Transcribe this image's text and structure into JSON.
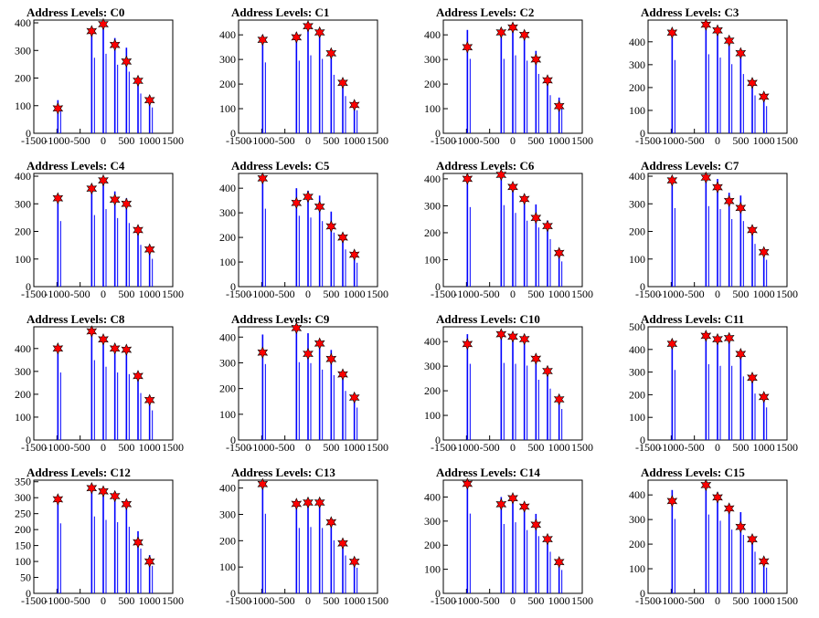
{
  "title_prefix": "Address Levels: ",
  "x_ticks": [
    "-1500",
    "-1000",
    "-500",
    "0",
    "500",
    "1000",
    "1500"
  ],
  "colors": {
    "histogram": "#0000ff",
    "marker_fill": "#ff0000",
    "marker_stroke": "#000000",
    "frame": "#000000",
    "background": "#ffffff"
  },
  "chart_data": [
    {
      "type": "bar",
      "title": "Address Levels: C0",
      "xlim": [
        -1500,
        1500
      ],
      "ylim": [
        0,
        410
      ],
      "yticks": [
        0,
        100,
        200,
        300,
        400
      ],
      "x": [
        -980,
        -250,
        0,
        250,
        500,
        750,
        1000
      ],
      "values": [
        120,
        380,
        400,
        345,
        310,
        200,
        130
      ],
      "markers": [
        90,
        370,
        395,
        320,
        260,
        190,
        120
      ]
    },
    {
      "type": "bar",
      "title": "Address Levels: C1",
      "xlim": [
        -1500,
        1500
      ],
      "ylim": [
        0,
        460
      ],
      "yticks": [
        0,
        100,
        200,
        300,
        400
      ],
      "x": [
        -980,
        -250,
        0,
        250,
        500,
        750,
        1000
      ],
      "values": [
        400,
        410,
        440,
        420,
        330,
        210,
        130
      ],
      "markers": [
        380,
        390,
        435,
        410,
        325,
        205,
        115
      ]
    },
    {
      "type": "bar",
      "title": "Address Levels: C2",
      "xlim": [
        -1500,
        1500
      ],
      "ylim": [
        0,
        460
      ],
      "yticks": [
        0,
        100,
        200,
        300,
        400
      ],
      "x": [
        -980,
        -250,
        0,
        250,
        500,
        750,
        1000
      ],
      "values": [
        420,
        420,
        440,
        410,
        335,
        215,
        145
      ],
      "markers": [
        350,
        410,
        430,
        400,
        300,
        215,
        110
      ]
    },
    {
      "type": "bar",
      "title": "Address Levels: C3",
      "xlim": [
        -1500,
        1500
      ],
      "ylim": [
        0,
        495
      ],
      "yticks": [
        0,
        100,
        200,
        300,
        400
      ],
      "x": [
        -980,
        -250,
        0,
        250,
        500,
        750,
        1000
      ],
      "values": [
        445,
        480,
        460,
        420,
        360,
        230,
        165
      ],
      "markers": [
        440,
        475,
        450,
        405,
        350,
        220,
        160
      ]
    },
    {
      "type": "bar",
      "title": "Address Levels: C4",
      "xlim": [
        -1500,
        1500
      ],
      "ylim": [
        0,
        410
      ],
      "yticks": [
        0,
        100,
        200,
        300,
        400
      ],
      "x": [
        -980,
        -250,
        0,
        250,
        500,
        750,
        1000
      ],
      "values": [
        330,
        360,
        390,
        345,
        320,
        210,
        140
      ],
      "markers": [
        320,
        355,
        385,
        315,
        300,
        205,
        135
      ]
    },
    {
      "type": "bar",
      "title": "Address Levels: C5",
      "xlim": [
        -1500,
        1500
      ],
      "ylim": [
        0,
        460
      ],
      "yticks": [
        0,
        100,
        200,
        300,
        400
      ],
      "x": [
        -980,
        -250,
        0,
        250,
        500,
        750,
        1000
      ],
      "values": [
        440,
        400,
        390,
        370,
        305,
        210,
        135
      ],
      "markers": [
        440,
        340,
        365,
        325,
        245,
        200,
        130
      ]
    },
    {
      "type": "bar",
      "title": "Address Levels: C6",
      "xlim": [
        -1500,
        1500
      ],
      "ylim": [
        0,
        420
      ],
      "yticks": [
        0,
        100,
        200,
        300,
        400
      ],
      "x": [
        -980,
        -250,
        0,
        250,
        500,
        750,
        1000
      ],
      "values": [
        410,
        420,
        380,
        340,
        305,
        245,
        130
      ],
      "markers": [
        400,
        415,
        370,
        325,
        255,
        225,
        125
      ]
    },
    {
      "type": "bar",
      "title": "Address Levels: C7",
      "xlim": [
        -1500,
        1500
      ],
      "ylim": [
        0,
        410
      ],
      "yticks": [
        0,
        100,
        200,
        300,
        400
      ],
      "x": [
        -980,
        -250,
        0,
        250,
        500,
        750,
        1000
      ],
      "values": [
        395,
        405,
        390,
        340,
        330,
        215,
        135
      ],
      "markers": [
        385,
        395,
        360,
        310,
        285,
        205,
        125
      ]
    },
    {
      "type": "bar",
      "title": "Address Levels: C8",
      "xlim": [
        -1500,
        1500
      ],
      "ylim": [
        0,
        495
      ],
      "yticks": [
        0,
        100,
        200,
        300,
        400
      ],
      "x": [
        -980,
        -250,
        0,
        250,
        500,
        750,
        1000
      ],
      "values": [
        410,
        485,
        445,
        410,
        400,
        285,
        180
      ],
      "markers": [
        400,
        475,
        440,
        400,
        395,
        280,
        175
      ]
    },
    {
      "type": "bar",
      "title": "Address Levels: C9",
      "xlim": [
        -1500,
        1500
      ],
      "ylim": [
        0,
        440
      ],
      "yticks": [
        0,
        100,
        200,
        300,
        400
      ],
      "x": [
        -980,
        -250,
        0,
        250,
        500,
        750,
        1000
      ],
      "values": [
        410,
        420,
        415,
        380,
        350,
        265,
        175
      ],
      "markers": [
        340,
        435,
        335,
        375,
        315,
        255,
        165
      ]
    },
    {
      "type": "bar",
      "title": "Address Levels: C10",
      "xlim": [
        -1500,
        1500
      ],
      "ylim": [
        0,
        460
      ],
      "yticks": [
        0,
        100,
        200,
        300,
        400
      ],
      "x": [
        -980,
        -250,
        0,
        250,
        500,
        750,
        1000
      ],
      "values": [
        430,
        435,
        430,
        420,
        340,
        290,
        175
      ],
      "markers": [
        390,
        430,
        420,
        410,
        330,
        280,
        165
      ]
    },
    {
      "type": "bar",
      "title": "Address Levels: C11",
      "xlim": [
        -1500,
        1500
      ],
      "ylim": [
        0,
        500
      ],
      "yticks": [
        0,
        100,
        200,
        300,
        400,
        500
      ],
      "x": [
        -980,
        -250,
        0,
        250,
        500,
        750,
        1000
      ],
      "values": [
        430,
        465,
        455,
        455,
        390,
        285,
        200
      ],
      "markers": [
        425,
        460,
        445,
        450,
        380,
        275,
        190
      ]
    },
    {
      "type": "bar",
      "title": "Address Levels: C12",
      "xlim": [
        -1500,
        1500
      ],
      "ylim": [
        0,
        355
      ],
      "yticks": [
        0,
        50,
        100,
        150,
        200,
        250,
        300,
        350
      ],
      "x": [
        -980,
        -250,
        0,
        250,
        500,
        750,
        1000
      ],
      "values": [
        305,
        335,
        320,
        310,
        290,
        195,
        120
      ],
      "markers": [
        295,
        330,
        320,
        305,
        280,
        160,
        100
      ]
    },
    {
      "type": "bar",
      "title": "Address Levels: C13",
      "xlim": [
        -1500,
        1500
      ],
      "ylim": [
        0,
        430
      ],
      "yticks": [
        0,
        100,
        200,
        300,
        400
      ],
      "x": [
        -980,
        -250,
        0,
        250,
        500,
        750,
        1000
      ],
      "values": [
        420,
        345,
        350,
        345,
        280,
        200,
        135
      ],
      "markers": [
        415,
        340,
        345,
        345,
        270,
        190,
        120
      ]
    },
    {
      "type": "bar",
      "title": "Address Levels: C14",
      "xlim": [
        -1500,
        1500
      ],
      "ylim": [
        0,
        470
      ],
      "yticks": [
        0,
        100,
        200,
        300,
        400
      ],
      "x": [
        -980,
        -250,
        0,
        250,
        500,
        750,
        1000
      ],
      "values": [
        460,
        400,
        410,
        365,
        330,
        240,
        135
      ],
      "markers": [
        455,
        370,
        395,
        360,
        285,
        225,
        130
      ]
    },
    {
      "type": "bar",
      "title": "Address Levels: C15",
      "xlim": [
        -1500,
        1500
      ],
      "ylim": [
        0,
        460
      ],
      "yticks": [
        0,
        100,
        200,
        300,
        400
      ],
      "x": [
        -980,
        -250,
        0,
        250,
        500,
        750,
        1000
      ],
      "values": [
        420,
        445,
        410,
        360,
        330,
        235,
        145
      ],
      "markers": [
        375,
        440,
        390,
        345,
        270,
        220,
        130
      ]
    }
  ]
}
